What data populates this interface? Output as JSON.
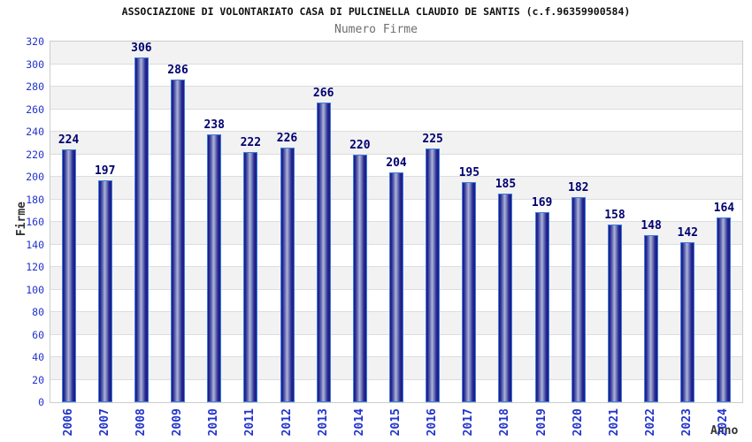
{
  "chart_data": {
    "type": "bar",
    "title": "ASSOCIAZIONE DI VOLONTARIATO CASA DI PULCINELLA CLAUDIO DE SANTIS (c.f.96359900584)",
    "subtitle": "Numero Firme",
    "xlabel": "Anno",
    "ylabel": "Firme",
    "categories": [
      "2006",
      "2007",
      "2008",
      "2009",
      "2010",
      "2011",
      "2012",
      "2013",
      "2014",
      "2015",
      "2016",
      "2017",
      "2018",
      "2019",
      "2020",
      "2021",
      "2022",
      "2023",
      "2024"
    ],
    "values": [
      224,
      197,
      306,
      286,
      238,
      222,
      226,
      266,
      220,
      204,
      225,
      195,
      185,
      169,
      182,
      158,
      148,
      142,
      164
    ],
    "value_labels_shown": true,
    "ylim": [
      0,
      320
    ],
    "ytick_step": 20,
    "yticks": [
      0,
      20,
      40,
      60,
      80,
      100,
      120,
      140,
      160,
      180,
      200,
      220,
      240,
      260,
      280,
      300,
      320
    ],
    "grid": "horizontal-lines-with-alternating-bands",
    "legend": "none",
    "colors": {
      "title": "#111111",
      "subtitle": "#6e6e6e",
      "axis_title": "#333333",
      "tick_label": "#2233cc",
      "value_label": "#000070",
      "plot_border": "#cccccc",
      "gridline": "#dddddd",
      "band_gray": "#f2f2f2",
      "band_white": "#ffffff",
      "bar_border": "#3d7de0",
      "bar_dark": "#191980",
      "bar_dark2": "#2b2b94",
      "bar_mid": "#7079b8",
      "bar_light": "#aeb4d8"
    }
  }
}
